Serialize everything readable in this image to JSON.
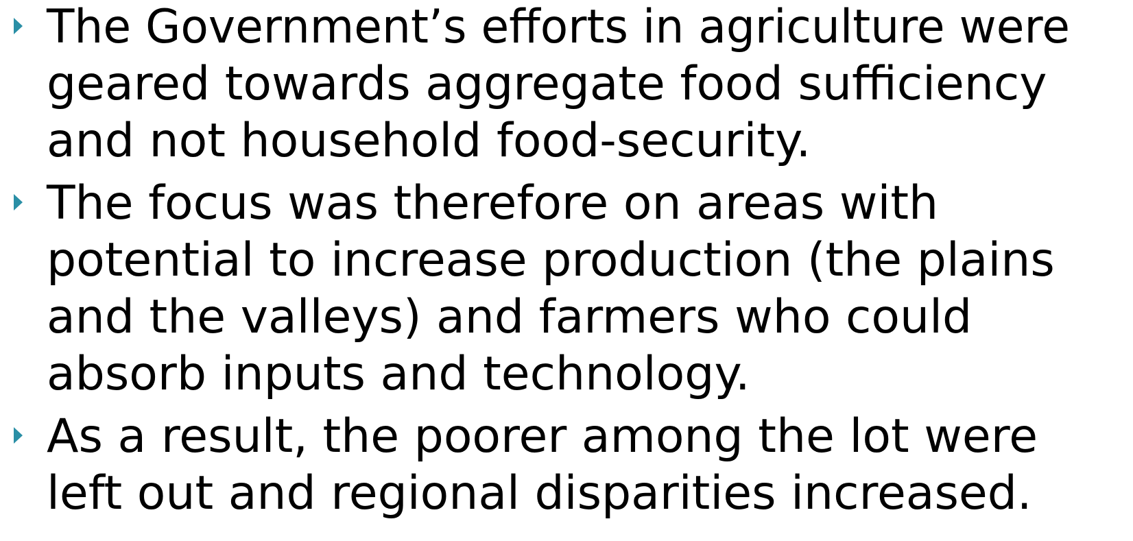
{
  "bullets": [
    {
      "lines": [
        "The Government’s efforts in agriculture were",
        "geared towards aggregate food sufficiency",
        "and not household food-security."
      ]
    },
    {
      "lines": [
        "The focus was therefore on areas with",
        "potential to increase production (the plains",
        "and the valleys) and farmers who could",
        "absorb inputs and technology."
      ]
    },
    {
      "lines": [
        "As a result, the poorer among the lot were",
        "left out and regional disparities increased."
      ]
    }
  ]
}
